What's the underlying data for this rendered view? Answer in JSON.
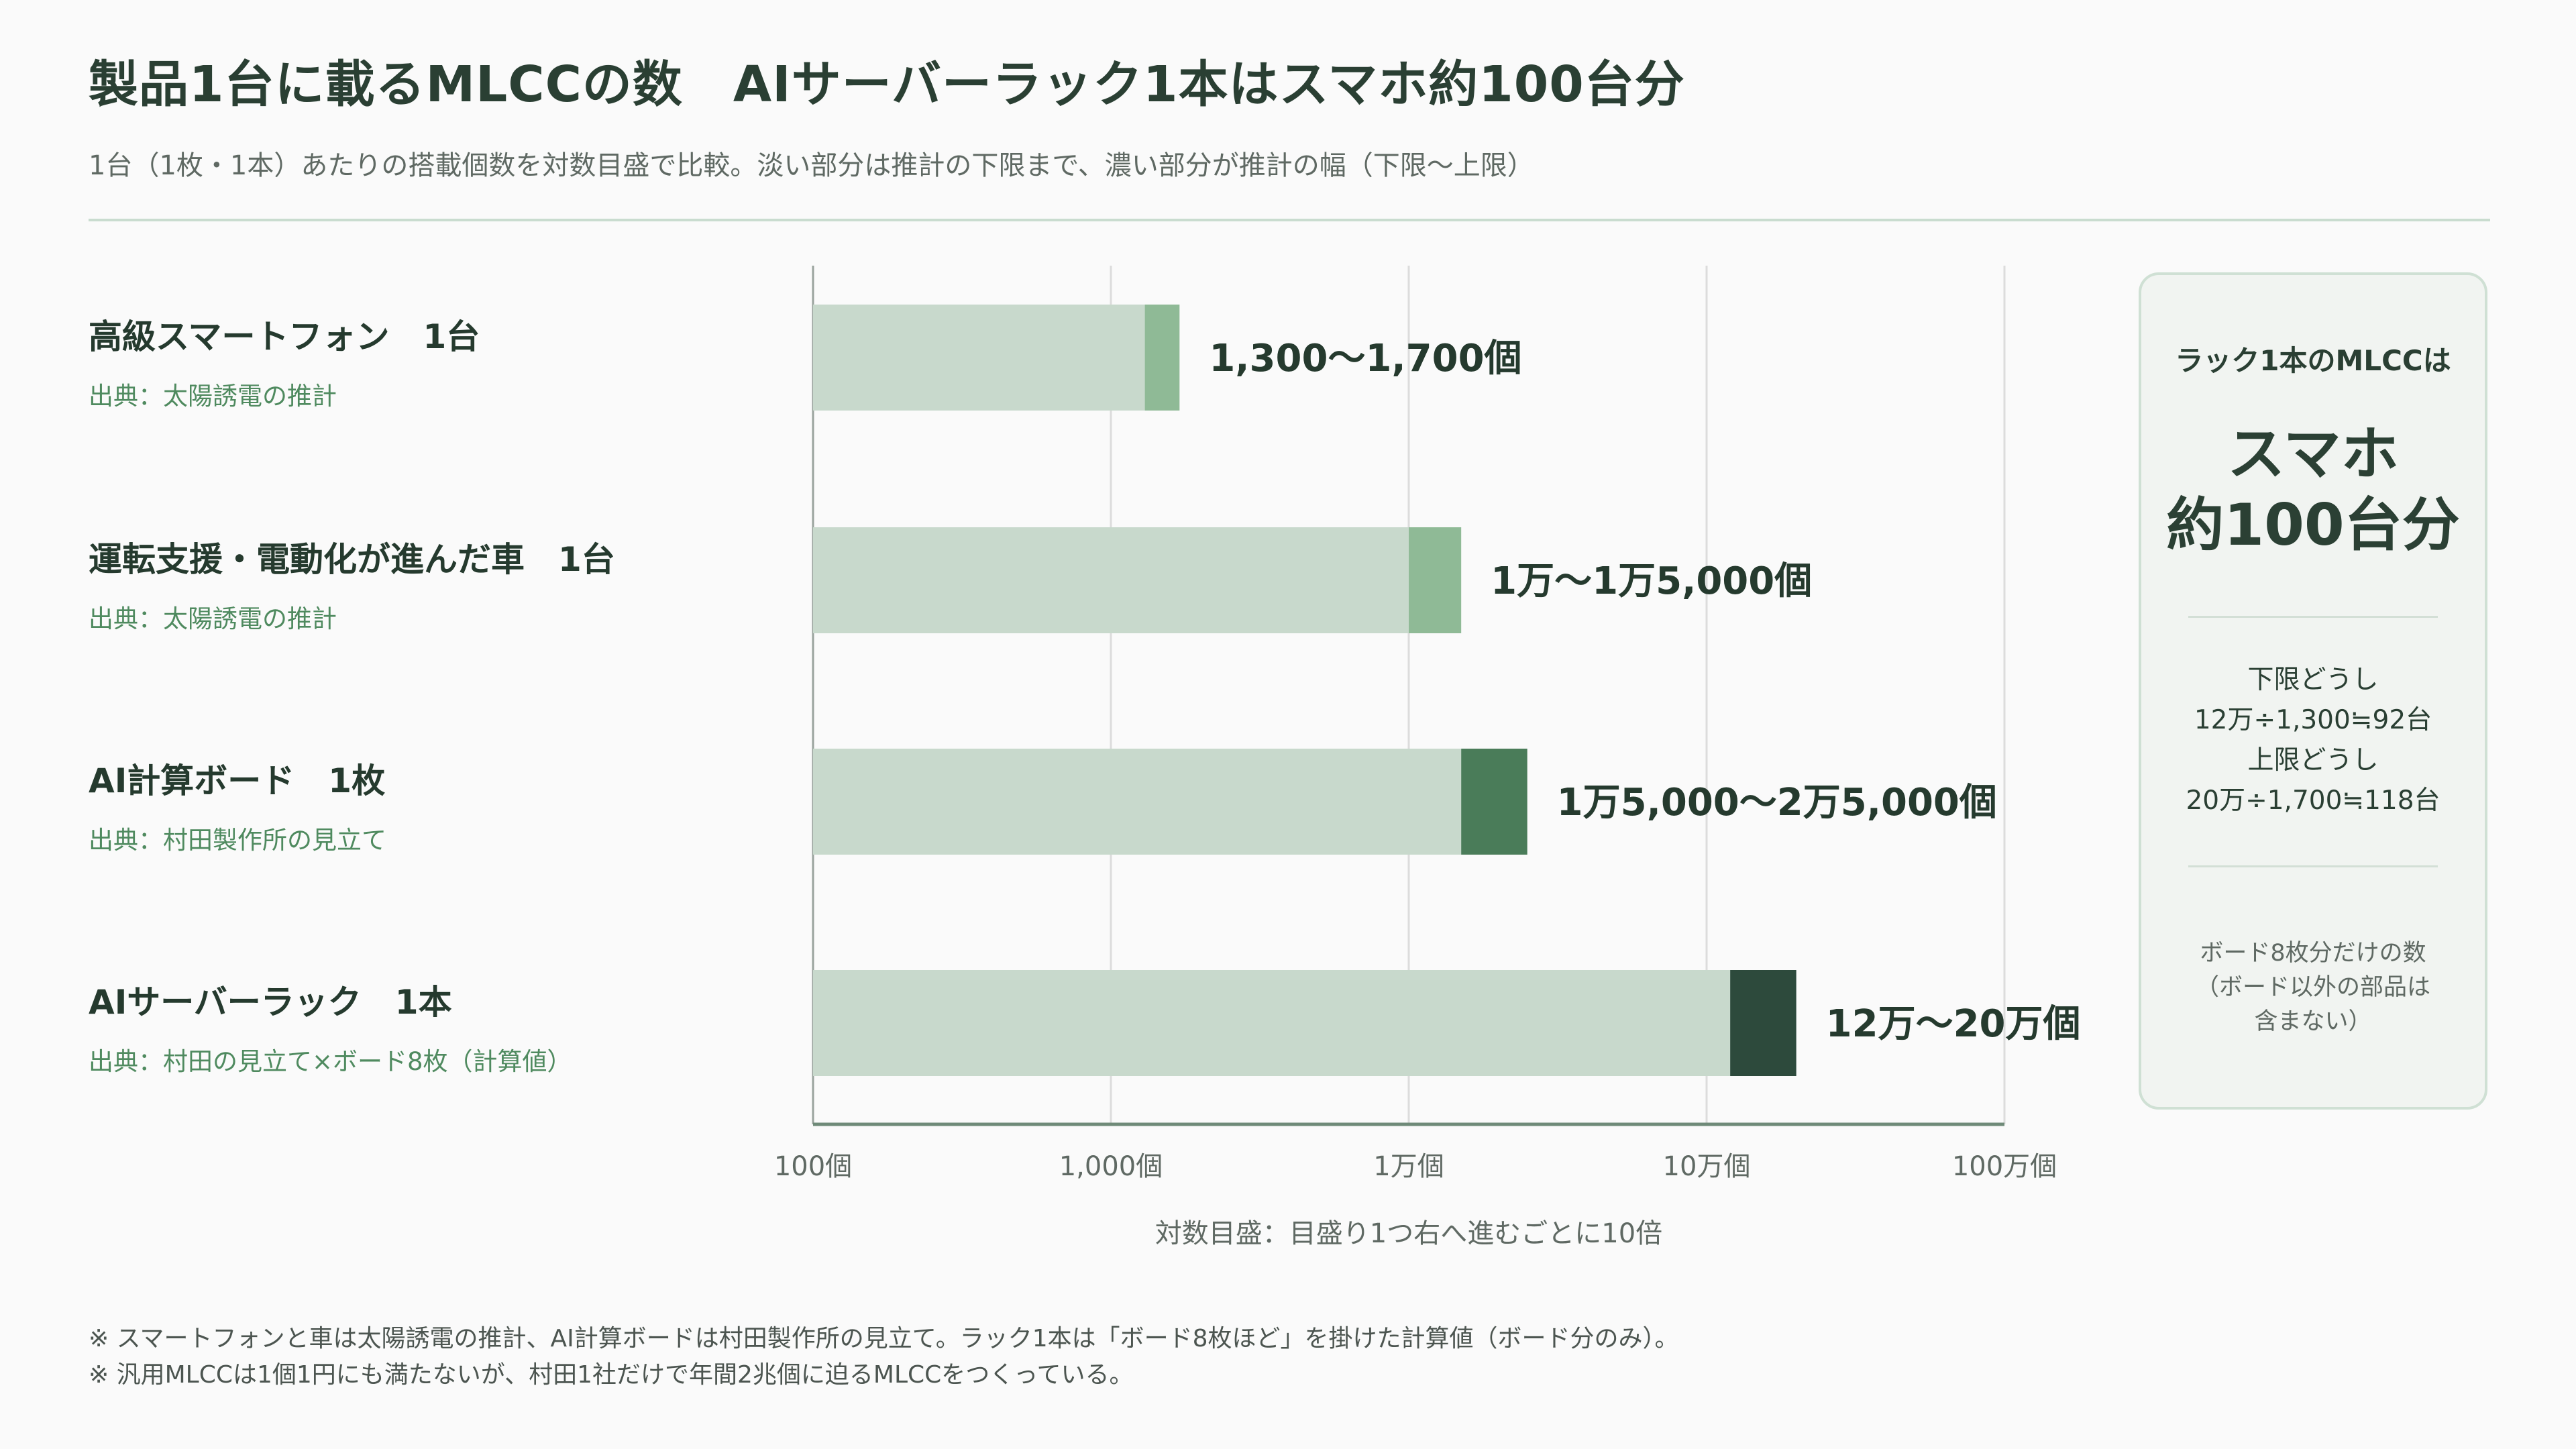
{
  "title": "製品1台に載るMLCCの数　AIサーバーラック1本はスマホ約100台分",
  "subtitle": "1台（1枚・1本）あたりの搭載個数を対数目盛で比較。淡い部分は推計の下限まで、濃い部分が推計の幅（下限〜上限）",
  "chart_data": {
    "type": "bar",
    "orientation": "horizontal",
    "scale": "log",
    "xlim": [
      100,
      1000000
    ],
    "xticks": [
      {
        "value": 100,
        "label": "100個"
      },
      {
        "value": 1000,
        "label": "1,000個"
      },
      {
        "value": 10000,
        "label": "1万個"
      },
      {
        "value": 100000,
        "label": "10万個"
      },
      {
        "value": 1000000,
        "label": "100万個"
      }
    ],
    "xlabel": "対数目盛：目盛り1つ右へ進むごとに10倍",
    "grid": true,
    "categories": [
      {
        "name": "高級スマートフォン　1台",
        "source": "出典：太陽誘電の推計",
        "low": 1300,
        "high": 1700,
        "label": "1,300〜1,700個",
        "range_color": "#8fba96"
      },
      {
        "name": "運転支援・電動化が進んだ車　1台",
        "source": "出典：太陽誘電の推計",
        "low": 10000,
        "high": 15000,
        "label": "1万〜1万5,000個",
        "range_color": "#8fba96"
      },
      {
        "name": "AI計算ボード　1枚",
        "source": "出典：村田製作所の見立て",
        "low": 15000,
        "high": 25000,
        "label": "1万5,000〜2万5,000個",
        "range_color": "#4a7c59"
      },
      {
        "name": "AIサーバーラック　1本",
        "source": "出典：村田の見立て×ボード8枚（計算値）",
        "low": 120000,
        "high": 200000,
        "label": "12万〜20万個",
        "range_color": "#2d4a3c"
      }
    ],
    "base_color": "#c8d9cc"
  },
  "side_card": {
    "heading": "ラック1本のMLCCは",
    "big_line1": "スマホ",
    "big_line2": "約100台分",
    "calc_line1": "下限どうし",
    "calc_line2": "12万÷1,300≒92台",
    "calc_line3": "上限どうし",
    "calc_line4": "20万÷1,700≒118台",
    "note_line1": "ボード8枚分だけの数",
    "note_line2": "（ボード以外の部品は",
    "note_line3": "含まない）"
  },
  "footnotes": [
    "※ スマートフォンと車は太陽誘電の推計、AI計算ボードは村田製作所の見立て。ラック1本は「ボード8枚ほど」を掛けた計算値（ボード分のみ）。",
    "※ 汎用MLCCは1個1円にも満たないが、村田1社だけで年間2兆個に迫るMLCCをつくっている。"
  ]
}
